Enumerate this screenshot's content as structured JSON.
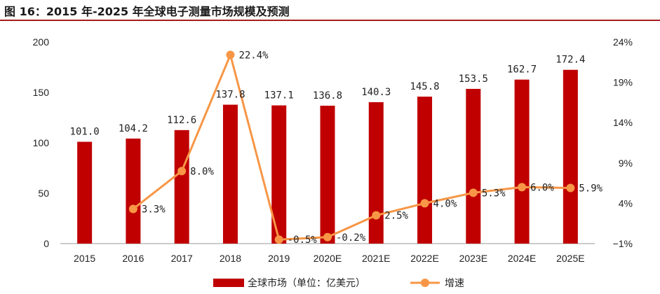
{
  "title": "图 16：2015 年-2025 年全球电子测量市场规模及预测",
  "chart_data": {
    "type": "bar",
    "categories": [
      "2015",
      "2016",
      "2017",
      "2018",
      "2019",
      "2020E",
      "2021E",
      "2022E",
      "2023E",
      "2024E",
      "2025E"
    ],
    "series": [
      {
        "name": "全球市场（单位：亿美元）",
        "type": "bar",
        "axis": "left",
        "color": "#c00000",
        "values": [
          101.0,
          104.2,
          112.6,
          137.8,
          137.1,
          136.8,
          140.3,
          145.8,
          153.5,
          162.7,
          172.4
        ],
        "labels": [
          "101.0",
          "104.2",
          "112.6",
          "137.8",
          "137.1",
          "136.8",
          "140.3",
          "145.8",
          "153.5",
          "162.7",
          "172.4"
        ]
      },
      {
        "name": "增速",
        "type": "line",
        "axis": "right",
        "color": "#f79646",
        "values": [
          null,
          3.3,
          8.0,
          22.4,
          -0.5,
          -0.2,
          2.5,
          4.0,
          5.3,
          6.0,
          5.9
        ],
        "labels": [
          "",
          "3.3%",
          "8.0%",
          "22.4%",
          "-0.5%",
          "-0.2%",
          "2.5%",
          "4.0%",
          "5.3%",
          "6.0%",
          "5.9%"
        ]
      }
    ],
    "y_left": {
      "min": 0,
      "max": 200,
      "ticks": [
        "0",
        "50",
        "100",
        "150",
        "200"
      ]
    },
    "y_right": {
      "min": -1,
      "max": 24,
      "ticks": [
        "−1%",
        "4%",
        "9%",
        "14%",
        "19%",
        "24%"
      ]
    },
    "grid": false,
    "legend_position": "bottom"
  }
}
